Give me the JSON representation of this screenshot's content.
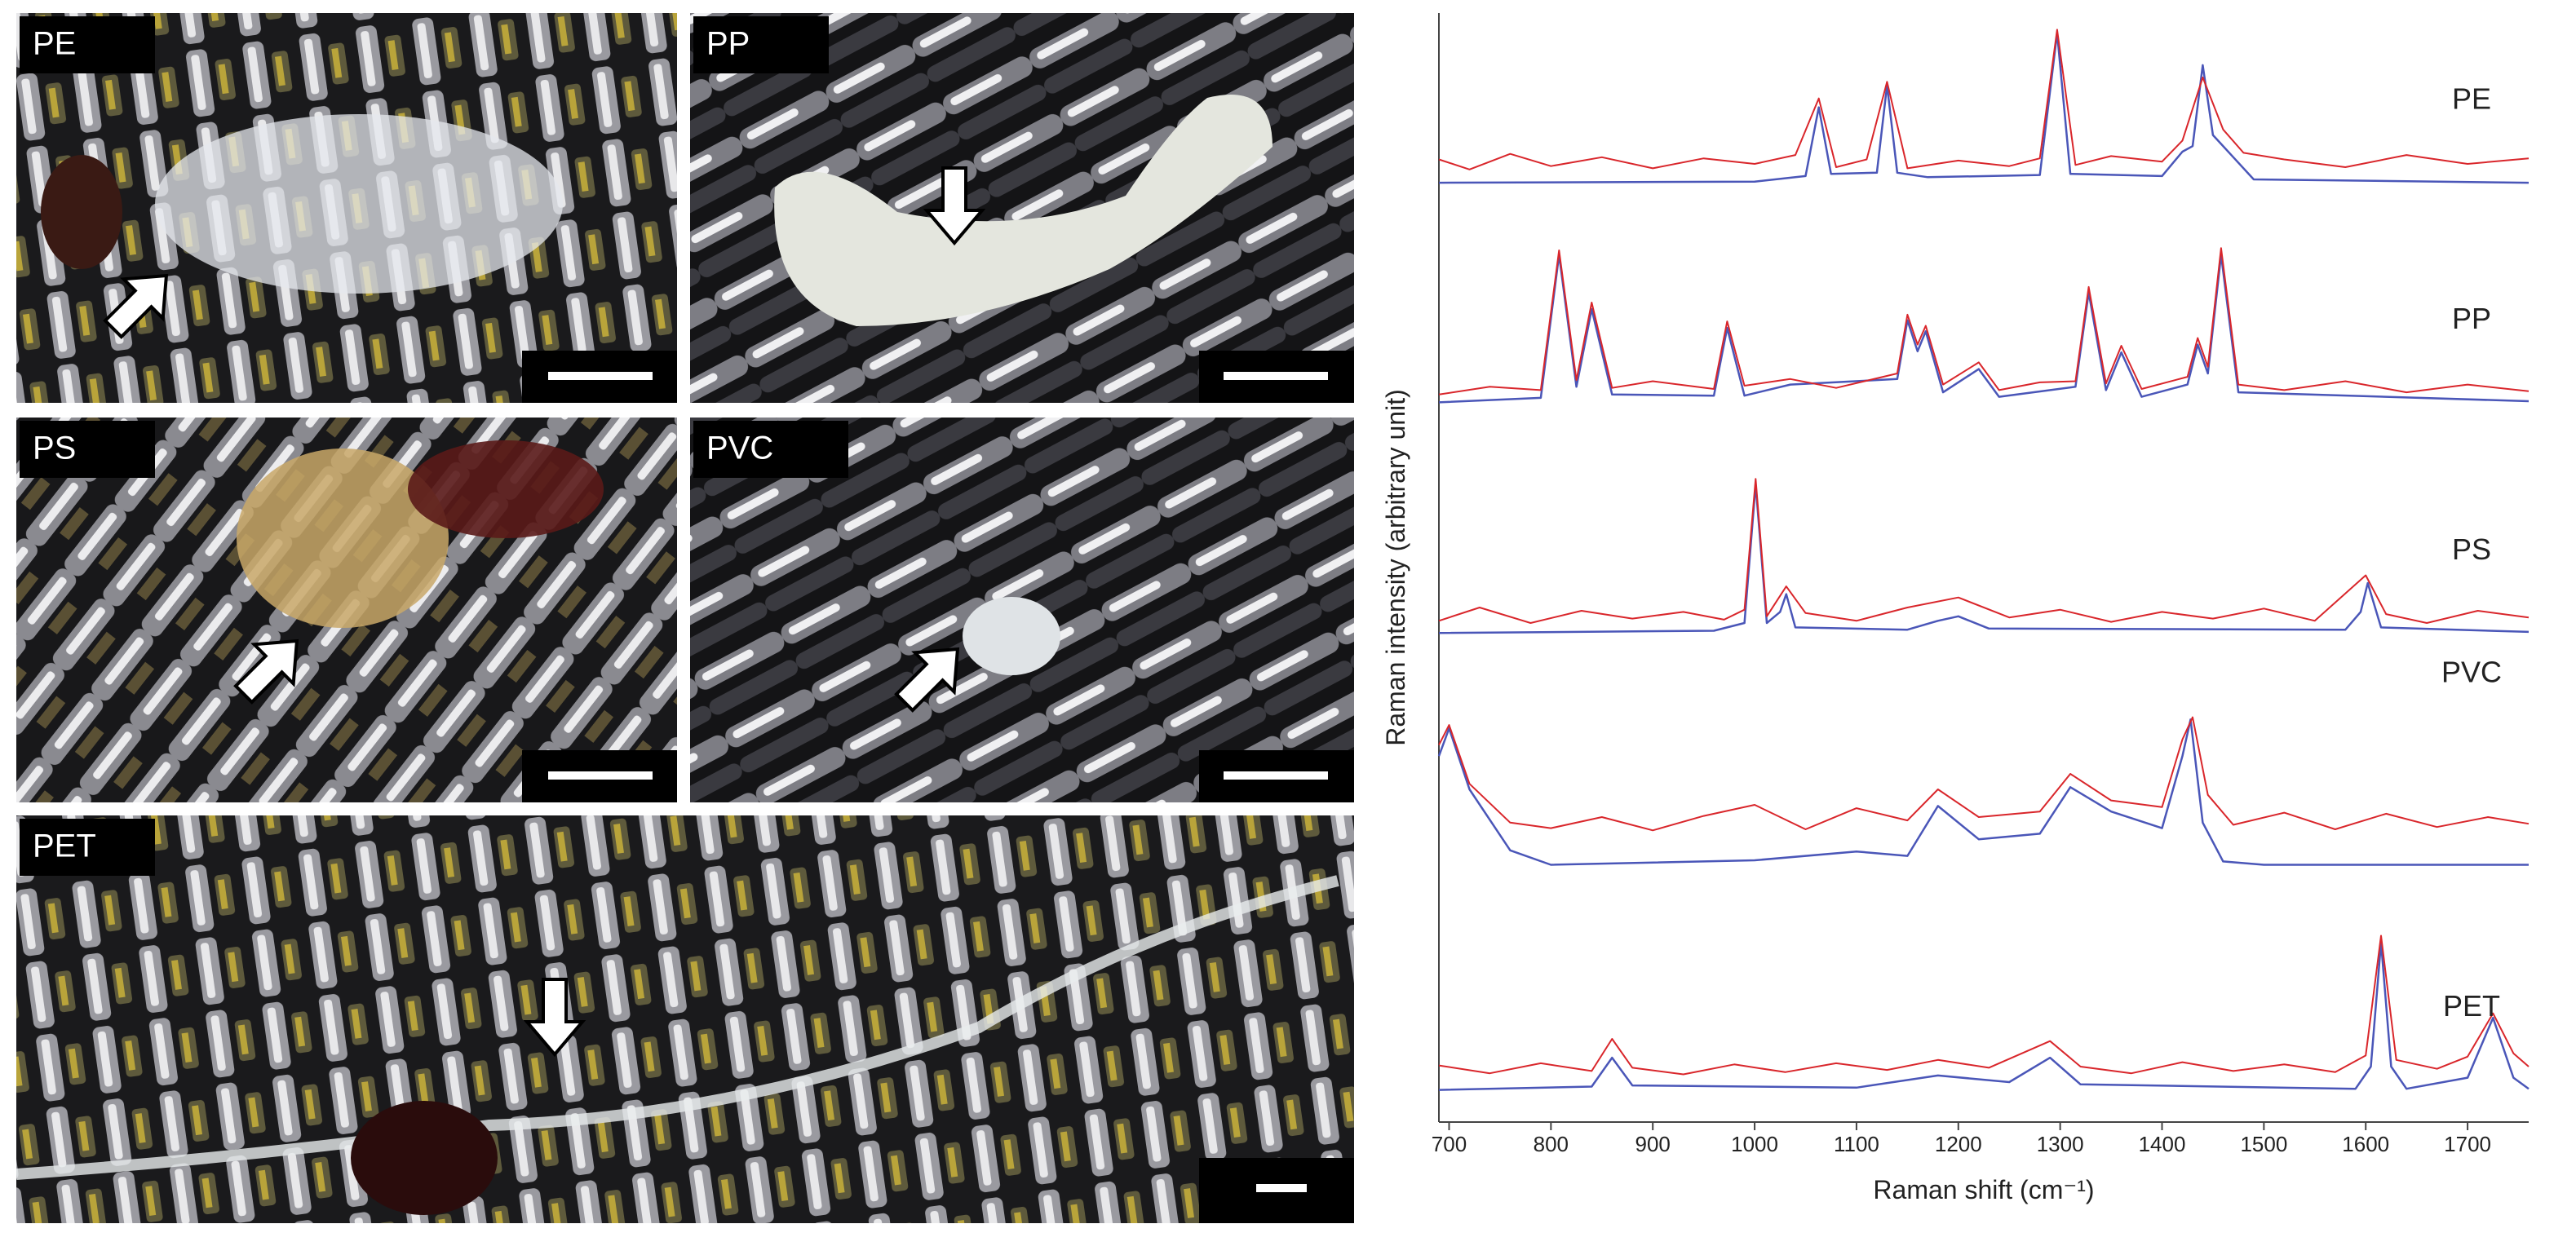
{
  "panels": [
    {
      "label": "PE"
    },
    {
      "label": "PP"
    },
    {
      "label": "PS"
    },
    {
      "label": "PVC"
    },
    {
      "label": "PET"
    }
  ],
  "chart_data": {
    "type": "line",
    "xlabel": "Raman shift (cm⁻¹)",
    "ylabel": "Raman intensity (arbitrary unit)",
    "xlim": [
      690,
      1760
    ],
    "xticks": [
      700,
      800,
      900,
      1000,
      1100,
      1200,
      1300,
      1400,
      1500,
      1600,
      1700
    ],
    "ylim": [
      0,
      100
    ],
    "spectra": [
      {
        "label": "PE",
        "measured": {
          "color": "#d9262b",
          "x": [
            690,
            720,
            760,
            800,
            850,
            900,
            950,
            1000,
            1040,
            1063,
            1080,
            1110,
            1130,
            1150,
            1200,
            1250,
            1280,
            1297,
            1315,
            1350,
            1400,
            1420,
            1440,
            1460,
            1480,
            1520,
            1580,
            1640,
            1700,
            1760
          ],
          "values": [
            86.8,
            85.9,
            87.3,
            86.2,
            87.0,
            86.0,
            86.9,
            86.4,
            87.2,
            92.3,
            86.1,
            86.8,
            93.8,
            86.0,
            86.7,
            86.2,
            86.9,
            98.5,
            86.3,
            87.1,
            86.6,
            88.5,
            94.2,
            89.5,
            87.4,
            86.8,
            86.1,
            87.2,
            86.4,
            86.9
          ]
        },
        "reference": {
          "color": "#4a56b8",
          "x": [
            690,
            1000,
            1050,
            1063,
            1075,
            1120,
            1130,
            1140,
            1170,
            1280,
            1297,
            1310,
            1400,
            1420,
            1430,
            1440,
            1450,
            1470,
            1490,
            1760
          ],
          "values": [
            84.7,
            84.8,
            85.3,
            91.5,
            85.5,
            85.6,
            93.5,
            85.6,
            85.2,
            85.4,
            98.2,
            85.5,
            85.3,
            87.5,
            88,
            95.3,
            89,
            87,
            85,
            84.7
          ]
        }
      },
      {
        "label": "PP",
        "measured": {
          "color": "#d9262b",
          "x": [
            690,
            740,
            790,
            808,
            825,
            840,
            860,
            900,
            960,
            973,
            990,
            1035,
            1080,
            1140,
            1150,
            1160,
            1168,
            1185,
            1220,
            1240,
            1280,
            1315,
            1328,
            1345,
            1360,
            1380,
            1425,
            1435,
            1445,
            1458,
            1475,
            1520,
            1580,
            1640,
            1700,
            1760
          ],
          "values": [
            65.6,
            66.3,
            66.0,
            78.6,
            66.9,
            73.9,
            66.2,
            66.8,
            66.1,
            72.2,
            66.4,
            67.0,
            66.2,
            67.5,
            72.8,
            70.1,
            71.8,
            66.5,
            68.5,
            66.0,
            66.7,
            66.8,
            75.3,
            66.6,
            70.0,
            66.1,
            67.2,
            70.7,
            68.1,
            78.8,
            66.5,
            66.0,
            66.8,
            65.8,
            66.5,
            65.9
          ]
        },
        "reference": {
          "color": "#4a56b8",
          "x": [
            690,
            790,
            808,
            825,
            840,
            860,
            960,
            973,
            990,
            1035,
            1140,
            1150,
            1160,
            1168,
            1185,
            1220,
            1240,
            1315,
            1328,
            1345,
            1360,
            1380,
            1425,
            1435,
            1445,
            1458,
            1475,
            1760
          ],
          "values": [
            64.9,
            65.3,
            78.2,
            66.3,
            73.3,
            65.6,
            65.5,
            71.6,
            65.5,
            66.5,
            67,
            72.3,
            69.5,
            71.3,
            65.8,
            67.9,
            65.4,
            66.3,
            74.8,
            66,
            69.4,
            65.4,
            66.5,
            70.1,
            67.5,
            78.2,
            65.8,
            65
          ]
        }
      },
      {
        "label": "PS",
        "measured": {
          "color": "#d9262b",
          "x": [
            690,
            730,
            780,
            830,
            880,
            930,
            970,
            990,
            1001,
            1012,
            1031,
            1050,
            1100,
            1150,
            1200,
            1250,
            1300,
            1350,
            1400,
            1450,
            1500,
            1550,
            1600,
            1620,
            1660,
            1710,
            1760
          ],
          "values": [
            45.2,
            46.4,
            45.0,
            46.1,
            45.4,
            46.0,
            45.3,
            46.2,
            58.0,
            45.6,
            48.3,
            45.9,
            45.2,
            46.4,
            47.3,
            45.5,
            46.2,
            45.1,
            46.0,
            45.4,
            46.3,
            45.2,
            49.3,
            45.8,
            45.0,
            46.1,
            45.5
          ]
        },
        "reference": {
          "color": "#4a56b8",
          "x": [
            690,
            960,
            990,
            1001,
            1012,
            1025,
            1031,
            1040,
            1150,
            1180,
            1200,
            1230,
            1580,
            1595,
            1602,
            1615,
            1760
          ],
          "values": [
            44.1,
            44.3,
            45,
            57.5,
            45,
            46,
            47.6,
            44.6,
            44.4,
            45.2,
            45.6,
            44.5,
            44.4,
            46,
            48.6,
            44.6,
            44.2
          ]
        }
      },
      {
        "label": "PVC",
        "measured": {
          "color": "#d9262b",
          "x": [
            690,
            700,
            720,
            760,
            800,
            850,
            900,
            950,
            1000,
            1050,
            1100,
            1150,
            1180,
            1220,
            1280,
            1310,
            1350,
            1400,
            1420,
            1430,
            1445,
            1470,
            1520,
            1570,
            1620,
            1670,
            1720,
            1760
          ],
          "values": [
            34,
            35.8,
            30.5,
            27,
            26.5,
            27.5,
            26.3,
            27.6,
            28.6,
            26.4,
            28.3,
            27.2,
            30,
            27.5,
            28,
            31.4,
            29,
            28.4,
            34.5,
            36.5,
            29.5,
            26.8,
            27.9,
            26.4,
            27.8,
            26.6,
            27.5,
            26.9
          ]
        },
        "reference": {
          "color": "#4a56b8",
          "x": [
            690,
            700,
            720,
            760,
            800,
            1000,
            1100,
            1150,
            1180,
            1220,
            1280,
            1310,
            1350,
            1400,
            1420,
            1428,
            1440,
            1460,
            1500,
            1760
          ],
          "values": [
            33,
            35.5,
            30,
            24.5,
            23.2,
            23.6,
            24.4,
            24.0,
            28.5,
            25.5,
            26,
            30.2,
            28,
            26.5,
            33,
            36.3,
            27,
            23.5,
            23.2,
            23.2
          ]
        }
      },
      {
        "label": "PET",
        "measured": {
          "color": "#d9262b",
          "x": [
            690,
            740,
            790,
            840,
            860,
            880,
            930,
            980,
            1030,
            1080,
            1130,
            1180,
            1230,
            1290,
            1320,
            1370,
            1420,
            1470,
            1520,
            1570,
            1600,
            1615,
            1630,
            1670,
            1700,
            1725,
            1745,
            1760
          ],
          "values": [
            5.1,
            4.4,
            5.3,
            4.6,
            7.5,
            4.9,
            4.3,
            5.2,
            4.5,
            5.3,
            4.7,
            5.6,
            4.9,
            7.3,
            5.0,
            4.4,
            5.4,
            4.6,
            5.2,
            4.5,
            6,
            16.8,
            5.6,
            4.8,
            5.9,
            9.8,
            6.2,
            5.0
          ]
        },
        "reference": {
          "color": "#4a56b8",
          "x": [
            690,
            840,
            860,
            880,
            1100,
            1180,
            1250,
            1290,
            1320,
            1590,
            1605,
            1615,
            1625,
            1640,
            1700,
            1725,
            1745,
            1760
          ],
          "values": [
            2.9,
            3.2,
            5.8,
            3.3,
            3.1,
            4.2,
            3.6,
            5.8,
            3.4,
            3,
            5,
            16.2,
            5,
            3,
            4,
            9.4,
            4,
            3
          ]
        }
      }
    ]
  }
}
